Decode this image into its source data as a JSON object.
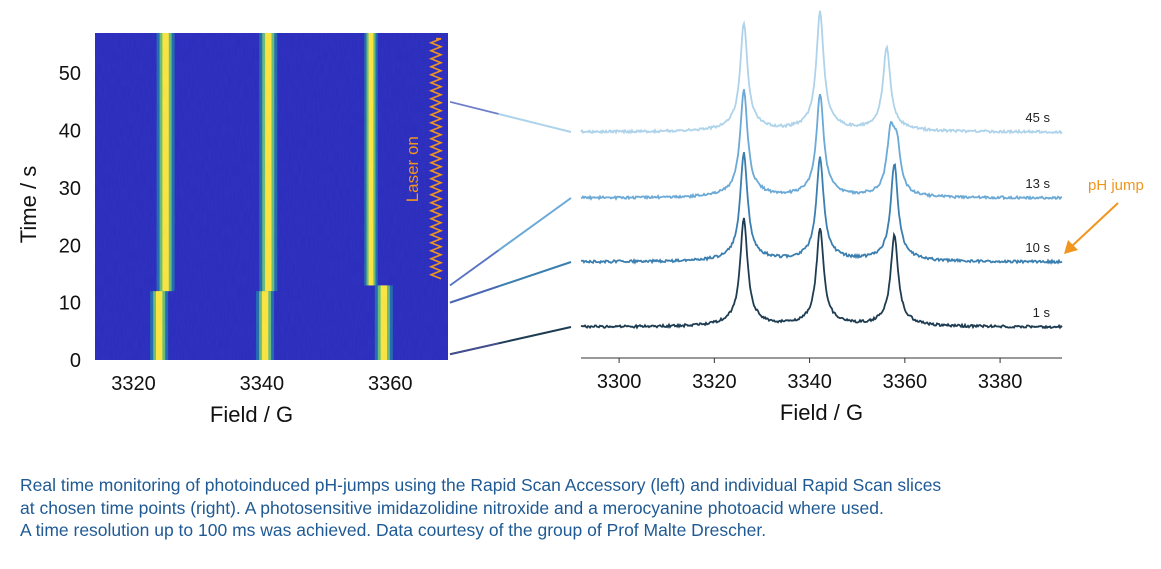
{
  "chart_data": [
    {
      "type": "heatmap",
      "xlabel": "Field / G",
      "ylabel": "Time / s",
      "xlim": [
        3314,
        3369
      ],
      "ylim": [
        0,
        57
      ],
      "x_ticks": [
        3320,
        3340,
        3360
      ],
      "y_ticks": [
        0,
        10,
        20,
        30,
        40,
        50
      ],
      "annotation": "Laser on",
      "laser_on_interval_s": [
        14,
        56
      ],
      "colormap": {
        "low": "#2626b8",
        "mid": "#1aa3a0",
        "high": "#ffe83a"
      },
      "lines": [
        {
          "before_jump_center_G": 3324,
          "after_jump_center_G": 3325,
          "jump_time_s": 12
        },
        {
          "before_jump_center_G": 3340.5,
          "after_jump_center_G": 3341,
          "jump_time_s": 12
        },
        {
          "before_jump_center_G": 3359,
          "after_jump_center_G": 3357,
          "jump_time_s": 13
        }
      ]
    },
    {
      "type": "line",
      "xlabel": "Field / G",
      "xlim": [
        3292,
        3393
      ],
      "x_ticks": [
        3300,
        3320,
        3340,
        3360,
        3380
      ],
      "annotation": "pH jump",
      "series": [
        {
          "name": "1 s",
          "time_s": 1,
          "color": "#1e3d52",
          "peak_positions_G": [
            3326.2,
            3342.2,
            3357.8
          ],
          "peak_heights": [
            1.0,
            0.9,
            0.85
          ]
        },
        {
          "name": "10 s",
          "time_s": 10,
          "color": "#3a7fb0",
          "peak_positions_G": [
            3326.2,
            3342.2,
            3357.8
          ],
          "peak_heights": [
            1.0,
            0.95,
            0.9
          ]
        },
        {
          "name": "13 s",
          "time_s": 13,
          "color": "#6ba9d6",
          "peak_positions_G": [
            3326.2,
            3342.2,
            3357.0
          ],
          "peak_heights": [
            1.0,
            0.95,
            0.55
          ]
        },
        {
          "name": "45 s",
          "time_s": 45,
          "color": "#aed3ea",
          "peak_positions_G": [
            3326.2,
            3342.2,
            3356.2
          ],
          "peak_heights": [
            1.0,
            1.1,
            0.78
          ]
        }
      ]
    }
  ],
  "caption": {
    "line1": "Real time monitoring of photoinduced pH-jumps using the Rapid Scan Accessory (left) and individual Rapid Scan slices",
    "line2": "at chosen time points (right). A photosensitive imidazolidine nitroxide and a merocyanine photoacid where used.",
    "line3": "A time resolution up to 100 ms was achieved. Data courtesy of the group of Prof Malte Drescher."
  },
  "colors": {
    "caption_text": "#1f5a94",
    "annotation_orange": "#f0961e",
    "connector": "#5a54b8"
  }
}
